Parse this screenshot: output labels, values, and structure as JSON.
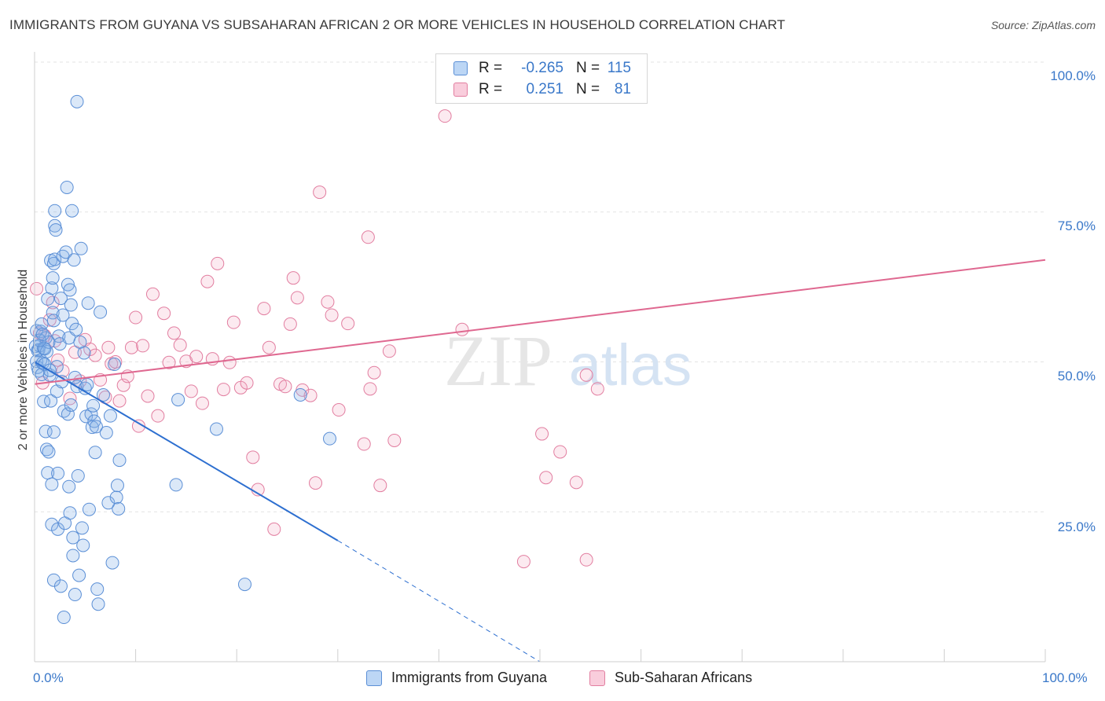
{
  "title": "IMMIGRANTS FROM GUYANA VS SUBSAHARAN AFRICAN 2 OR MORE VEHICLES IN HOUSEHOLD CORRELATION CHART",
  "source": "Source: ZipAtlas.com",
  "watermark": {
    "zip": "ZIP",
    "atlas": "atlas"
  },
  "legend_top": [
    {
      "r_label": "R =",
      "r_value": "-0.265",
      "n_label": "N =",
      "n_value": "115",
      "color": "#a9c8ef",
      "border": "#5b8fd6"
    },
    {
      "r_label": "R =",
      "r_value": "0.251",
      "n_label": "N =",
      "n_value": "81",
      "color": "#f7c1d3",
      "border": "#e27ea0"
    }
  ],
  "legend_bottom": [
    {
      "label": "Immigrants from Guyana",
      "color": "#bcd6f5",
      "border": "#5b8fd6"
    },
    {
      "label": "Sub-Saharan Africans",
      "color": "#f9cddc",
      "border": "#e27ea0"
    }
  ],
  "colors": {
    "blue_point_fill": "rgba(135,178,232,0.30)",
    "blue_point_stroke": "#5b8fd6",
    "blue_line": "#2d6fd0",
    "pink_point_fill": "rgba(244,170,196,0.25)",
    "pink_point_stroke": "#e27ea0",
    "pink_line": "#df6890",
    "tick_text": "#3a78c9",
    "grid": "#e3e3e3"
  },
  "chart_data": {
    "type": "scatter",
    "title": "IMMIGRANTS FROM GUYANA VS SUBSAHARAN AFRICAN 2 OR MORE VEHICLES IN HOUSEHOLD CORRELATION CHART",
    "xlabel": "",
    "ylabel": "2 or more Vehicles in Household",
    "xlim": [
      0,
      100
    ],
    "ylim": [
      0,
      100
    ],
    "x_tick_labels": [
      "0.0%",
      "100.0%"
    ],
    "y_tick_labels": [
      "25.0%",
      "50.0%",
      "75.0%",
      "100.0%"
    ],
    "y_ticks": [
      25,
      50,
      75,
      100
    ],
    "x_ticks": [
      0,
      10,
      20,
      30,
      40,
      50,
      60,
      70,
      80,
      90,
      100
    ],
    "grid": true,
    "legend": "top-center",
    "series": [
      {
        "name": "Immigrants from Guyana",
        "points": [
          [
            0.1,
            52.6
          ],
          [
            0.2,
            50.1
          ],
          [
            0.2,
            55.2
          ],
          [
            0.3,
            49.1
          ],
          [
            0.3,
            51.9
          ],
          [
            0.4,
            48.5
          ],
          [
            0.4,
            52.0
          ],
          [
            0.5,
            52.7
          ],
          [
            0.6,
            50.3
          ],
          [
            0.6,
            55.1
          ],
          [
            0.7,
            47.9
          ],
          [
            0.7,
            56.3
          ],
          [
            0.8,
            49.8
          ],
          [
            0.9,
            52.3
          ],
          [
            0.9,
            43.4
          ],
          [
            1.0,
            49.6
          ],
          [
            1.1,
            54.0
          ],
          [
            1.1,
            38.4
          ],
          [
            1.2,
            51.7
          ],
          [
            1.3,
            60.5
          ],
          [
            1.2,
            35.4
          ],
          [
            1.3,
            31.5
          ],
          [
            1.4,
            35.0
          ],
          [
            1.4,
            53.3
          ],
          [
            1.5,
            47.8
          ],
          [
            1.6,
            43.5
          ],
          [
            1.6,
            66.9
          ],
          [
            1.7,
            29.6
          ],
          [
            1.7,
            62.3
          ],
          [
            1.7,
            22.9
          ],
          [
            1.8,
            64.0
          ],
          [
            1.8,
            58.2
          ],
          [
            1.9,
            13.6
          ],
          [
            1.9,
            56.9
          ],
          [
            1.9,
            38.3
          ],
          [
            1.9,
            66.4
          ],
          [
            2.0,
            75.2
          ],
          [
            2.0,
            72.7
          ],
          [
            2.1,
            72.0
          ],
          [
            2.0,
            67.1
          ],
          [
            2.2,
            49.2
          ],
          [
            2.2,
            45.1
          ],
          [
            2.3,
            22.1
          ],
          [
            2.3,
            31.4
          ],
          [
            2.4,
            54.3
          ],
          [
            2.5,
            53.0
          ],
          [
            2.6,
            12.6
          ],
          [
            2.6,
            60.6
          ],
          [
            2.7,
            46.7
          ],
          [
            2.8,
            67.6
          ],
          [
            2.8,
            57.8
          ],
          [
            2.9,
            7.4
          ],
          [
            2.9,
            41.8
          ],
          [
            3.0,
            23.1
          ],
          [
            3.1,
            68.3
          ],
          [
            3.2,
            79.1
          ],
          [
            3.3,
            62.9
          ],
          [
            3.3,
            41.3
          ],
          [
            3.4,
            29.2
          ],
          [
            3.4,
            54.0
          ],
          [
            3.5,
            62.0
          ],
          [
            3.5,
            24.8
          ],
          [
            3.6,
            59.5
          ],
          [
            3.6,
            42.8
          ],
          [
            3.7,
            56.4
          ],
          [
            3.7,
            75.2
          ],
          [
            3.8,
            20.7
          ],
          [
            3.8,
            17.7
          ],
          [
            3.9,
            67.0
          ],
          [
            4.0,
            47.4
          ],
          [
            4.0,
            11.2
          ],
          [
            4.1,
            55.4
          ],
          [
            4.2,
            93.4
          ],
          [
            4.2,
            45.9
          ],
          [
            4.3,
            31.0
          ],
          [
            4.4,
            14.4
          ],
          [
            4.5,
            53.3
          ],
          [
            4.6,
            68.9
          ],
          [
            4.7,
            22.3
          ],
          [
            4.8,
            19.4
          ],
          [
            4.9,
            51.5
          ],
          [
            5.0,
            45.6
          ],
          [
            5.1,
            40.9
          ],
          [
            5.2,
            46.2
          ],
          [
            5.3,
            59.8
          ],
          [
            5.4,
            25.4
          ],
          [
            5.6,
            41.3
          ],
          [
            5.7,
            39.1
          ],
          [
            5.8,
            42.7
          ],
          [
            5.9,
            40.1
          ],
          [
            6.0,
            34.9
          ],
          [
            6.1,
            39.2
          ],
          [
            6.2,
            12.1
          ],
          [
            6.3,
            9.6
          ],
          [
            6.5,
            58.3
          ],
          [
            6.8,
            44.5
          ],
          [
            7.1,
            38.2
          ],
          [
            7.3,
            26.5
          ],
          [
            7.5,
            41.0
          ],
          [
            7.7,
            16.5
          ],
          [
            7.9,
            49.6
          ],
          [
            8.1,
            27.4
          ],
          [
            8.2,
            29.4
          ],
          [
            8.3,
            25.5
          ],
          [
            8.4,
            33.6
          ],
          [
            14.0,
            29.5
          ],
          [
            14.2,
            43.7
          ],
          [
            18.0,
            38.8
          ],
          [
            20.8,
            12.9
          ],
          [
            26.3,
            44.5
          ],
          [
            29.2,
            37.2
          ],
          [
            1.0,
            52.2
          ],
          [
            0.5,
            53.6
          ],
          [
            1.5,
            48.6
          ],
          [
            0.8,
            54.6
          ]
        ]
      },
      {
        "name": "Sub-Saharan Africans",
        "points": [
          [
            0.2,
            62.2
          ],
          [
            0.5,
            54.8
          ],
          [
            0.8,
            46.5
          ],
          [
            1.0,
            54.4
          ],
          [
            1.5,
            57.0
          ],
          [
            1.8,
            59.9
          ],
          [
            2.0,
            53.5
          ],
          [
            2.3,
            50.3
          ],
          [
            2.8,
            48.5
          ],
          [
            3.5,
            43.9
          ],
          [
            4.0,
            51.6
          ],
          [
            4.5,
            46.8
          ],
          [
            5.0,
            53.7
          ],
          [
            5.5,
            52.1
          ],
          [
            6.0,
            51.1
          ],
          [
            6.5,
            47.0
          ],
          [
            7.0,
            44.1
          ],
          [
            7.3,
            52.4
          ],
          [
            7.6,
            49.7
          ],
          [
            8.0,
            50.0
          ],
          [
            8.4,
            43.5
          ],
          [
            8.8,
            46.1
          ],
          [
            9.2,
            47.6
          ],
          [
            9.6,
            52.4
          ],
          [
            10.0,
            57.4
          ],
          [
            10.3,
            39.3
          ],
          [
            10.7,
            52.7
          ],
          [
            11.2,
            44.3
          ],
          [
            11.7,
            61.3
          ],
          [
            12.2,
            41.0
          ],
          [
            12.8,
            58.1
          ],
          [
            13.3,
            49.9
          ],
          [
            13.8,
            54.8
          ],
          [
            14.4,
            52.8
          ],
          [
            15.0,
            50.1
          ],
          [
            15.5,
            45.1
          ],
          [
            16.0,
            50.9
          ],
          [
            16.6,
            43.1
          ],
          [
            17.1,
            63.4
          ],
          [
            17.6,
            50.5
          ],
          [
            18.1,
            66.4
          ],
          [
            18.7,
            45.4
          ],
          [
            19.3,
            49.9
          ],
          [
            19.7,
            56.6
          ],
          [
            20.4,
            45.7
          ],
          [
            21.0,
            46.5
          ],
          [
            21.6,
            34.1
          ],
          [
            22.1,
            28.7
          ],
          [
            22.7,
            58.9
          ],
          [
            23.2,
            52.4
          ],
          [
            23.7,
            22.1
          ],
          [
            24.3,
            46.3
          ],
          [
            24.8,
            45.9
          ],
          [
            25.3,
            56.3
          ],
          [
            25.6,
            64.0
          ],
          [
            26.0,
            60.7
          ],
          [
            26.5,
            45.3
          ],
          [
            27.3,
            44.4
          ],
          [
            27.8,
            29.8
          ],
          [
            28.2,
            78.3
          ],
          [
            29.0,
            60.0
          ],
          [
            29.4,
            57.8
          ],
          [
            30.1,
            42.0
          ],
          [
            31.0,
            56.4
          ],
          [
            32.6,
            36.3
          ],
          [
            33.0,
            70.8
          ],
          [
            33.2,
            45.5
          ],
          [
            33.6,
            48.2
          ],
          [
            34.2,
            29.4
          ],
          [
            35.1,
            51.8
          ],
          [
            35.6,
            36.9
          ],
          [
            40.6,
            91.0
          ],
          [
            42.3,
            55.4
          ],
          [
            50.2,
            38.0
          ],
          [
            53.6,
            29.9
          ],
          [
            54.6,
            17.0
          ],
          [
            54.6,
            47.8
          ],
          [
            48.4,
            16.7
          ],
          [
            50.6,
            30.7
          ],
          [
            52.0,
            35.0
          ],
          [
            55.7,
            45.5
          ]
        ]
      }
    ],
    "trend_lines": [
      {
        "name": "Immigrants from Guyana",
        "from": [
          0.0,
          50.0
        ],
        "to": [
          30.0,
          20.2
        ],
        "dashed_to": [
          50.0,
          0.0
        ]
      },
      {
        "name": "Sub-Saharan Africans",
        "from": [
          0.0,
          46.3
        ],
        "to": [
          100.0,
          67.0
        ]
      }
    ]
  }
}
